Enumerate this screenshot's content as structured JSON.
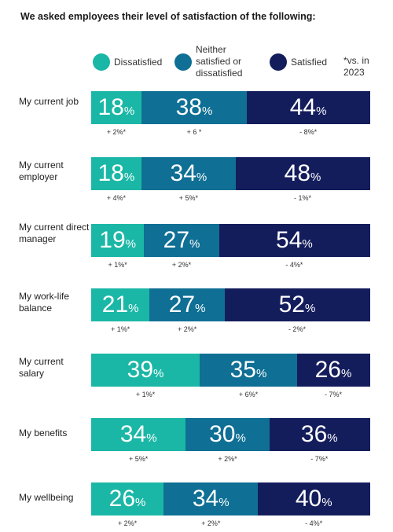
{
  "title": "We asked employees their level of satisfaction of the following:",
  "note": "*vs. in 2023",
  "colors": {
    "dissatisfied": "#1bb7a6",
    "neither": "#0f6f94",
    "satisfied": "#141d5c"
  },
  "chart_data": {
    "type": "bar",
    "stacked": true,
    "orientation": "horizontal",
    "xlim": [
      0,
      100
    ],
    "legend": [
      "Dissatisfied",
      "Neither satisfied or dissatisfied",
      "Satisfied"
    ],
    "categories": [
      "My current job",
      "My current employer",
      "My current direct manager",
      "My work-life balance",
      "My current salary",
      "My benefits",
      "My wellbeing"
    ],
    "series": [
      {
        "name": "Dissatisfied",
        "values": [
          18,
          18,
          19,
          21,
          39,
          34,
          26
        ],
        "changes": [
          "+ 2%*",
          "+ 4%*",
          "+ 1%*",
          "+ 1%*",
          "+ 1%*",
          "+ 5%*",
          "+ 2%*"
        ]
      },
      {
        "name": "Neither satisfied or dissatisfied",
        "values": [
          38,
          34,
          27,
          27,
          35,
          30,
          34
        ],
        "changes": [
          "+ 6 *",
          "+ 5%*",
          "+ 2%*",
          "+ 2%*",
          "+ 6%*",
          "+ 2%*",
          "+ 2%*"
        ]
      },
      {
        "name": "Satisfied",
        "values": [
          44,
          48,
          54,
          52,
          26,
          36,
          40
        ],
        "changes": [
          "- 8%*",
          "- 1%*",
          "- 4%*",
          "- 2%*",
          "- 7%*",
          "- 7%*",
          "- 4%*"
        ]
      }
    ]
  }
}
